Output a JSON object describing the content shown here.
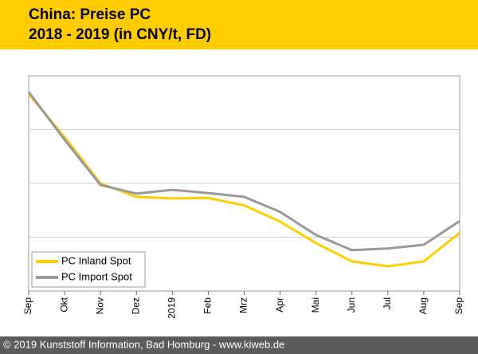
{
  "chart_data": {
    "type": "line",
    "title": "China: Preise PC",
    "subtitle": "2018 - 2019 (in CNY/t, FD)",
    "categories": [
      "Sep",
      "Okt",
      "Nov",
      "Dez",
      "2019",
      "Feb",
      "Mrz",
      "Apr",
      "Mai",
      "Jun",
      "Jul",
      "Aug",
      "Sep"
    ],
    "series": [
      {
        "name": "PC Inland Spot",
        "color": "#ffcc00",
        "values": [
          3.66,
          2.86,
          2.0,
          1.75,
          1.72,
          1.73,
          1.59,
          1.29,
          0.89,
          0.55,
          0.46,
          0.55,
          1.08
        ]
      },
      {
        "name": "PC Import Spot",
        "color": "#999999",
        "values": [
          3.7,
          2.81,
          1.97,
          1.81,
          1.88,
          1.82,
          1.75,
          1.47,
          1.04,
          0.76,
          0.79,
          0.86,
          1.3
        ]
      }
    ],
    "ylim": [
      0,
      4
    ],
    "yticks": [
      1,
      2,
      3
    ],
    "grid": true,
    "legend": "lower left"
  },
  "footer": "© 2019 Kunststoff Information, Bad Homburg - www.kiweb.de"
}
